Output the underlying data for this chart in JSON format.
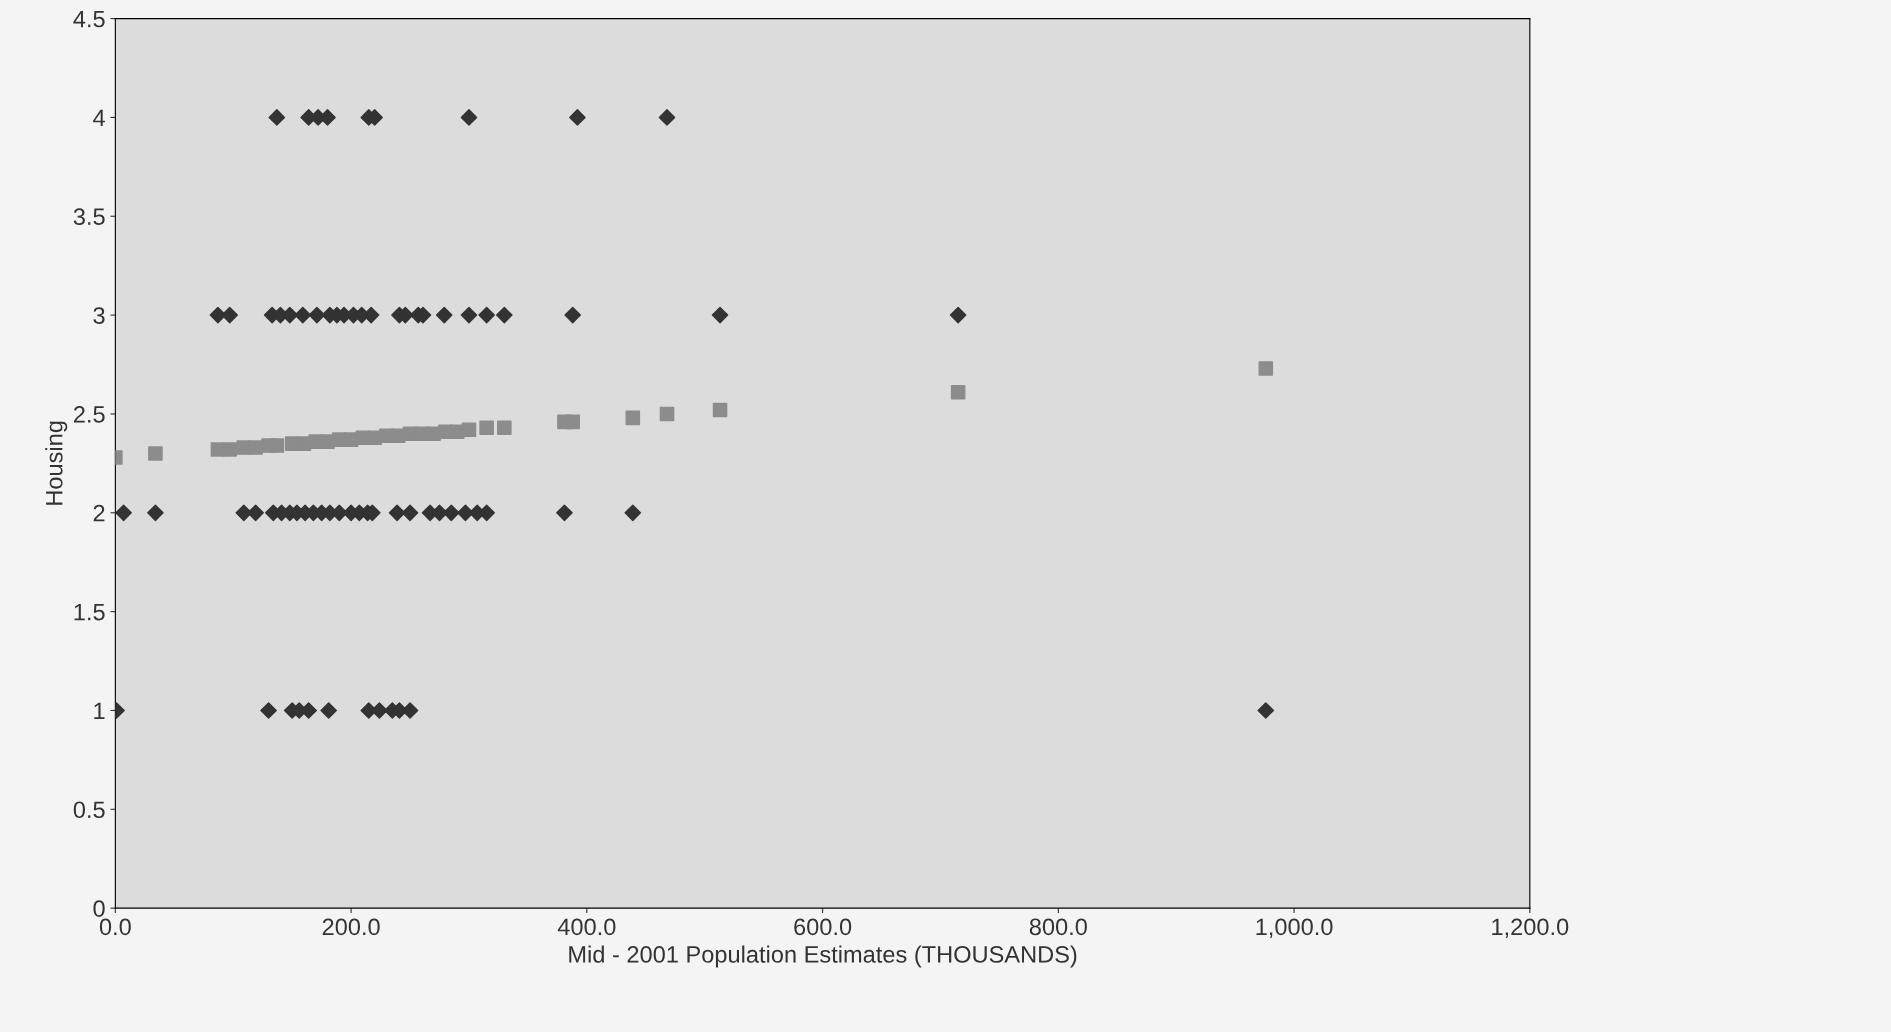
{
  "chart_data": {
    "type": "scatter",
    "xlabel": "Mid - 2001 Population Estimates (THOUSANDS)",
    "ylabel": "Housing",
    "xlim": [
      0,
      1200
    ],
    "xticks": [
      {
        "value": 0,
        "label": "0.0"
      },
      {
        "value": 200,
        "label": "200.0"
      },
      {
        "value": 400,
        "label": "400.0"
      },
      {
        "value": 600,
        "label": "600.0"
      },
      {
        "value": 800,
        "label": "800.0"
      },
      {
        "value": 1000,
        "label": "1,000.0"
      },
      {
        "value": 1200,
        "label": "1,200.0"
      }
    ],
    "ylim": [
      0,
      4.5
    ],
    "yticks": [
      0,
      0.5,
      1,
      1.5,
      2,
      2.5,
      3,
      3.5,
      4,
      4.5
    ],
    "grid": false,
    "legend": false,
    "series": [
      {
        "color": "#333333",
        "marker": "diamond",
        "x": [
          137,
          164,
          172,
          180,
          215,
          220,
          300,
          392,
          468,
          87,
          97,
          133,
          140,
          148,
          159,
          171,
          182,
          188,
          194,
          202,
          209,
          217,
          241,
          246,
          257,
          261,
          279,
          300,
          315,
          330,
          388,
          513,
          715,
          7,
          34,
          109,
          119,
          134,
          141,
          148,
          154,
          161,
          168,
          175,
          182,
          190,
          200,
          207,
          214,
          218,
          239,
          250,
          267,
          275,
          285,
          297,
          307,
          315,
          381,
          439,
          1,
          130,
          150,
          156,
          164,
          181,
          215,
          224,
          235,
          241,
          250,
          976
        ],
        "values": [
          4,
          4,
          4,
          4,
          4,
          4,
          4,
          4,
          4,
          3,
          3,
          3,
          3,
          3,
          3,
          3,
          3,
          3,
          3,
          3,
          3,
          3,
          3,
          3,
          3,
          3,
          3,
          3,
          3,
          3,
          3,
          3,
          3,
          2,
          2,
          2,
          2,
          2,
          2,
          2,
          2,
          2,
          2,
          2,
          2,
          2,
          2,
          2,
          2,
          2,
          2,
          2,
          2,
          2,
          2,
          2,
          2,
          2,
          2,
          2,
          1,
          1,
          1,
          1,
          1,
          1,
          1,
          1,
          1,
          1,
          1,
          1
        ]
      },
      {
        "color": "#8c8c8c",
        "marker": "square",
        "x": [
          0,
          34,
          87,
          97,
          109,
          119,
          130,
          137,
          150,
          160,
          170,
          180,
          190,
          200,
          210,
          220,
          230,
          240,
          250,
          260,
          270,
          280,
          290,
          300,
          315,
          330,
          381,
          388,
          439,
          468,
          513,
          715,
          976
        ],
        "values": [
          2.28,
          2.3,
          2.32,
          2.32,
          2.33,
          2.33,
          2.34,
          2.34,
          2.35,
          2.35,
          2.36,
          2.36,
          2.37,
          2.37,
          2.38,
          2.38,
          2.39,
          2.39,
          2.4,
          2.4,
          2.4,
          2.41,
          2.41,
          2.42,
          2.43,
          2.43,
          2.46,
          2.46,
          2.48,
          2.5,
          2.52,
          2.61,
          2.73
        ]
      }
    ]
  }
}
